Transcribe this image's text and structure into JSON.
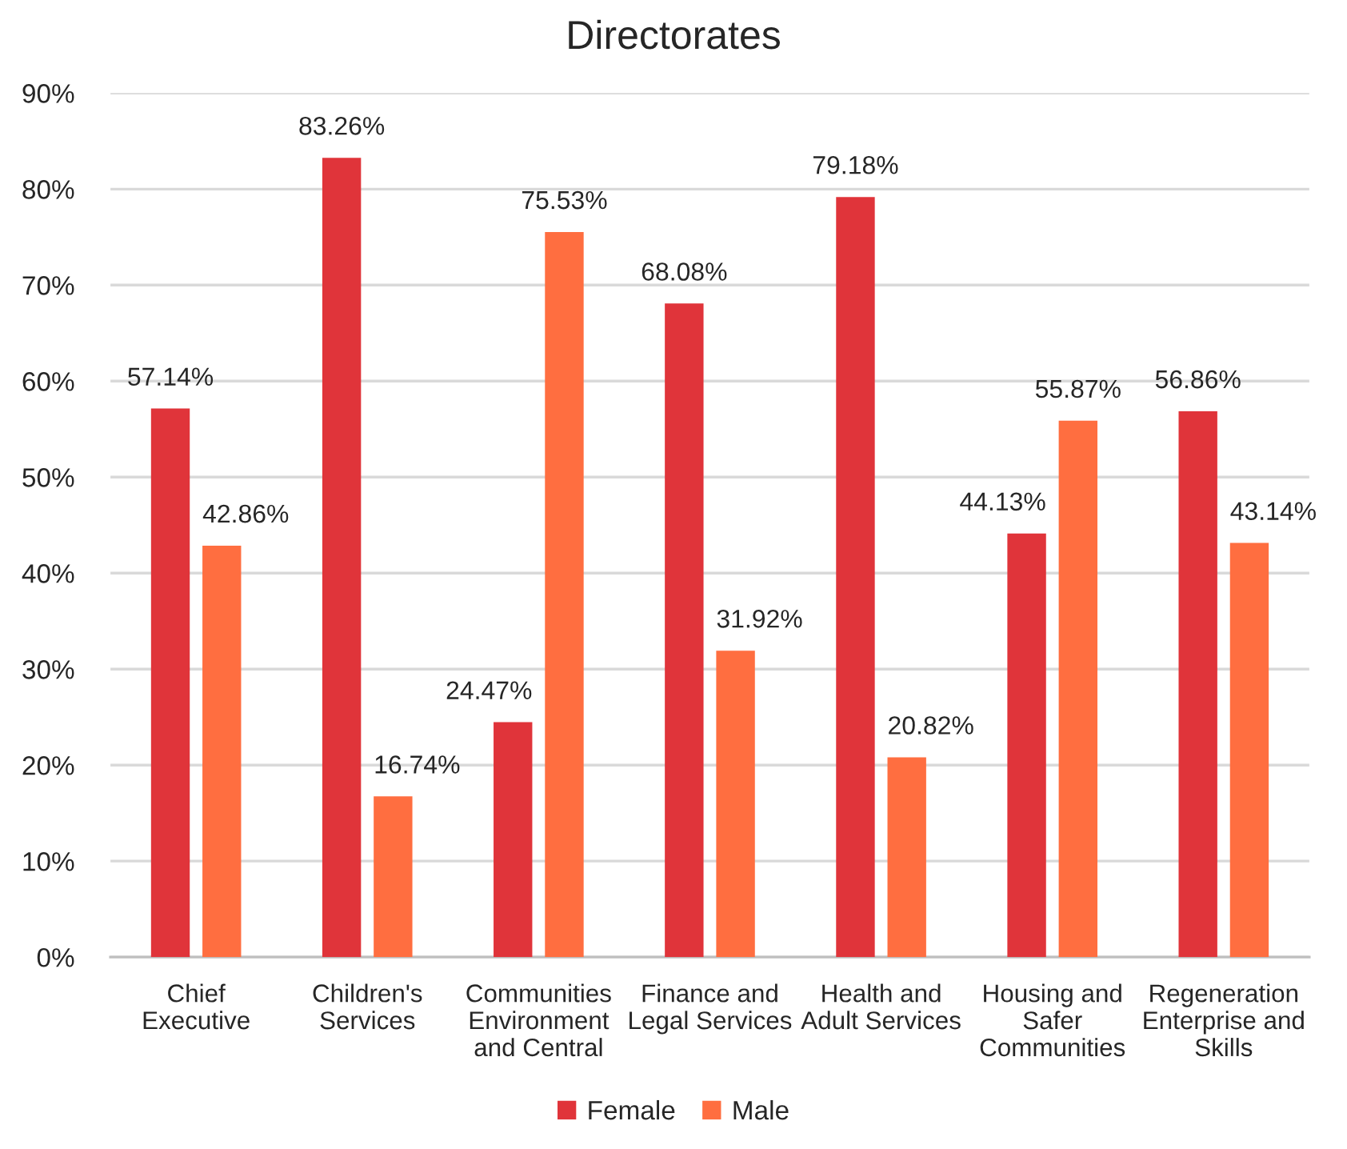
{
  "chart_data": {
    "type": "bar",
    "title": "Directorates",
    "categories": [
      "Chief Executive",
      "Children's Services",
      "Communities Environment and Central",
      "Finance and Legal Services",
      "Health and Adult Services",
      "Housing and Safer Communities",
      "Regeneration Enterprise and Skills"
    ],
    "series": [
      {
        "name": "Female",
        "color": "#e0343a",
        "values": [
          57.14,
          83.26,
          24.47,
          68.08,
          79.18,
          44.13,
          56.86
        ],
        "value_labels": [
          "57.14%",
          "83.26%",
          "24.47%",
          "68.08%",
          "79.18%",
          "44.13%",
          "56.86%"
        ]
      },
      {
        "name": "Male",
        "color": "#ff6e40",
        "values": [
          42.86,
          16.74,
          75.53,
          31.92,
          20.82,
          55.87,
          43.14
        ],
        "value_labels": [
          "42.86%",
          "16.74%",
          "75.53%",
          "31.92%",
          "20.82%",
          "55.87%",
          "43.14%"
        ]
      }
    ],
    "ylim": [
      0,
      90
    ],
    "yticks": [
      {
        "value": 0,
        "label": "0%"
      },
      {
        "value": 10,
        "label": "10%"
      },
      {
        "value": 20,
        "label": "20%"
      },
      {
        "value": 30,
        "label": "30%"
      },
      {
        "value": 40,
        "label": "40%"
      },
      {
        "value": 50,
        "label": "50%"
      },
      {
        "value": 60,
        "label": "60%"
      },
      {
        "value": 70,
        "label": "70%"
      },
      {
        "value": 80,
        "label": "80%"
      },
      {
        "value": 90,
        "label": "90%"
      }
    ],
    "grid": "y",
    "legend": "bottom"
  }
}
